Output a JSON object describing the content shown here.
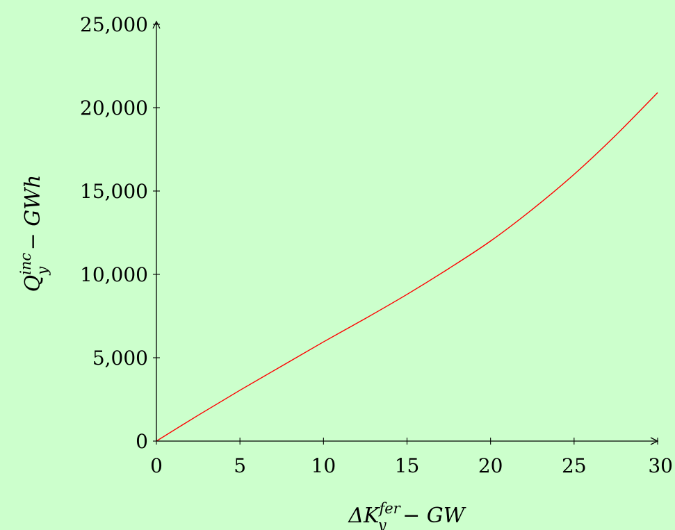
{
  "background_color": "#ccffcc",
  "chart_data": {
    "type": "line",
    "title": "",
    "xlabel": {
      "prefix": "ΔK",
      "sup": "fer",
      "sub": "y",
      "suffix": " − GW"
    },
    "ylabel": {
      "prefix": "Q",
      "sup": "inc",
      "sub": "y",
      "suffix": " − GWh"
    },
    "xlim": [
      0,
      30
    ],
    "ylim": [
      0,
      25000
    ],
    "xticks": [
      0,
      5,
      10,
      15,
      20,
      25,
      30
    ],
    "xtick_labels": [
      "0",
      "5",
      "10",
      "15",
      "20",
      "25",
      "30"
    ],
    "yticks": [
      0,
      5000,
      10000,
      15000,
      20000,
      25000
    ],
    "ytick_labels": [
      "0",
      "5,000",
      "10,000",
      "15,000",
      "20,000",
      "25,000"
    ],
    "grid": false,
    "series": [
      {
        "color": "#ff0000",
        "x": [
          0,
          2.5,
          5,
          7.5,
          10,
          12.5,
          15,
          17.5,
          20,
          22.5,
          25,
          27.5,
          30
        ],
        "y": [
          0,
          1550,
          3050,
          4500,
          5950,
          7350,
          8800,
          10350,
          12000,
          13900,
          16000,
          18350,
          20900
        ]
      }
    ]
  }
}
